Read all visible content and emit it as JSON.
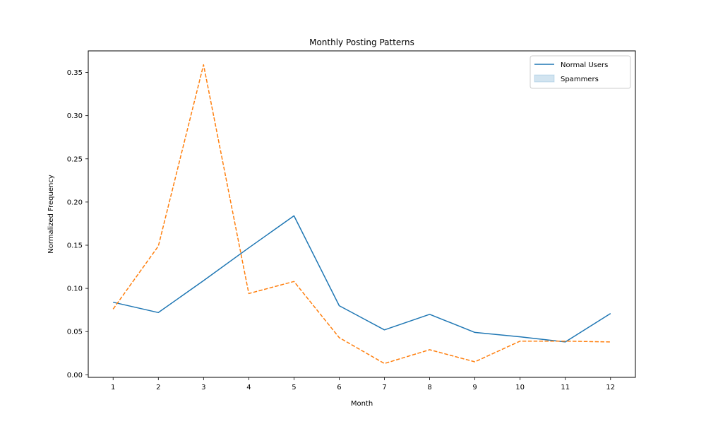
{
  "chart_data": {
    "type": "line",
    "title": "Monthly Posting Patterns",
    "xlabel": "Month",
    "ylabel": "Normalized Frequency",
    "categories": [
      "1",
      "2",
      "3",
      "4",
      "5",
      "6",
      "7",
      "8",
      "9",
      "10",
      "11",
      "12"
    ],
    "x": [
      1,
      2,
      3,
      4,
      5,
      6,
      7,
      8,
      9,
      10,
      11,
      12
    ],
    "ylim": [
      -0.003,
      0.375
    ],
    "yticks": [
      0.0,
      0.05,
      0.1,
      0.15,
      0.2,
      0.25,
      0.3,
      0.35
    ],
    "ytick_labels": [
      "0.00",
      "0.05",
      "0.10",
      "0.15",
      "0.20",
      "0.25",
      "0.30",
      "0.35"
    ],
    "xlim": [
      0.45,
      12.55
    ],
    "grid": false,
    "legend_position": "top-right",
    "legend": [
      {
        "label": "Normal Users",
        "marker": "line",
        "color": "#1f77b4"
      },
      {
        "label": "Spammers",
        "marker": "patch",
        "color": "#1f77b4"
      }
    ],
    "series": [
      {
        "color": "#1f77b4",
        "style": "solid",
        "values": [
          0.084,
          0.072,
          0.109,
          0.147,
          0.184,
          0.08,
          0.052,
          0.07,
          0.049,
          0.044,
          0.038,
          0.071
        ]
      },
      {
        "color": "#ff7f0e",
        "style": "dashed",
        "values": [
          0.076,
          0.149,
          0.359,
          0.094,
          0.108,
          0.043,
          0.013,
          0.029,
          0.015,
          0.039,
          0.039,
          0.038
        ]
      }
    ]
  }
}
